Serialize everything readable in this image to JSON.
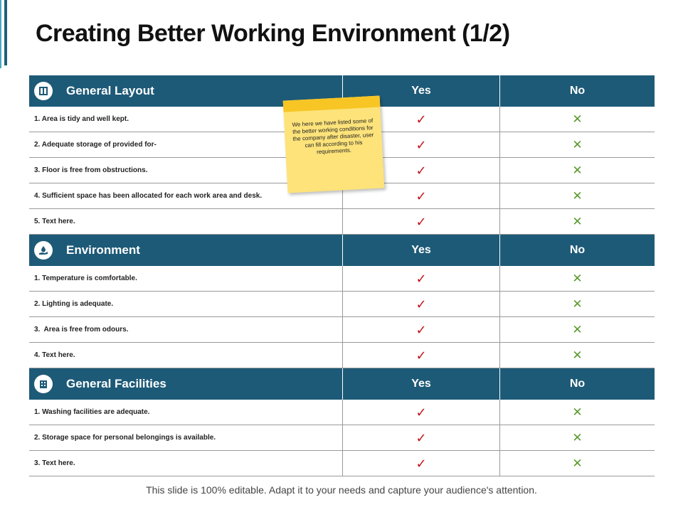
{
  "slide": {
    "title": "Creating Better Working Environment (1/2)",
    "footer": "This slide is 100% editable. Adapt it to your needs and capture your audience's attention."
  },
  "note": {
    "text": "We here we have listed some of the better working conditions for the company after disaster, user can fill according to his requirements."
  },
  "colors": {
    "header_bg": "#1d5a77",
    "check": "#c0141c",
    "cross": "#5a9a2c",
    "sticky": "#fde37a"
  },
  "sections": [
    {
      "title": "General Layout",
      "icon": "book-icon",
      "yes_label": "Yes",
      "no_label": "No",
      "rows": [
        {
          "text": "1. Area is tidy and well kept.",
          "yes": "✓",
          "no": "✕"
        },
        {
          "text": "2. Adequate storage of provided for-",
          "yes": "✓",
          "no": "✕"
        },
        {
          "text": "3. Floor is free from obstructions.",
          "yes": "✓",
          "no": "✕"
        },
        {
          "text": "4. Sufficient space has been allocated for each work area and desk.",
          "yes": "✓",
          "no": "✕"
        },
        {
          "text": "5. Text here.",
          "yes": "✓",
          "no": "✕"
        }
      ]
    },
    {
      "title": "Environment",
      "icon": "hand-with-water-drop-icon",
      "yes_label": "Yes",
      "no_label": "No",
      "rows": [
        {
          "text": "1. Temperature is comfortable.",
          "yes": "✓",
          "no": "✕"
        },
        {
          "text": "2. Lighting is adequate.",
          "yes": "✓",
          "no": "✕"
        },
        {
          "text": "3.  Area is free from odours.",
          "yes": "✓",
          "no": "✕"
        },
        {
          "text": "4. Text here.",
          "yes": "✓",
          "no": "✕"
        }
      ]
    },
    {
      "title": "General Facilities",
      "icon": "building-icon",
      "yes_label": "Yes",
      "no_label": "No",
      "rows": [
        {
          "text": "1. Washing facilities are adequate.",
          "yes": "✓",
          "no": "✕"
        },
        {
          "text": "2. Storage space for personal belongings is available.",
          "yes": "✓",
          "no": "✕"
        },
        {
          "text": "3. Text here.",
          "yes": "✓",
          "no": "✕"
        }
      ]
    }
  ]
}
